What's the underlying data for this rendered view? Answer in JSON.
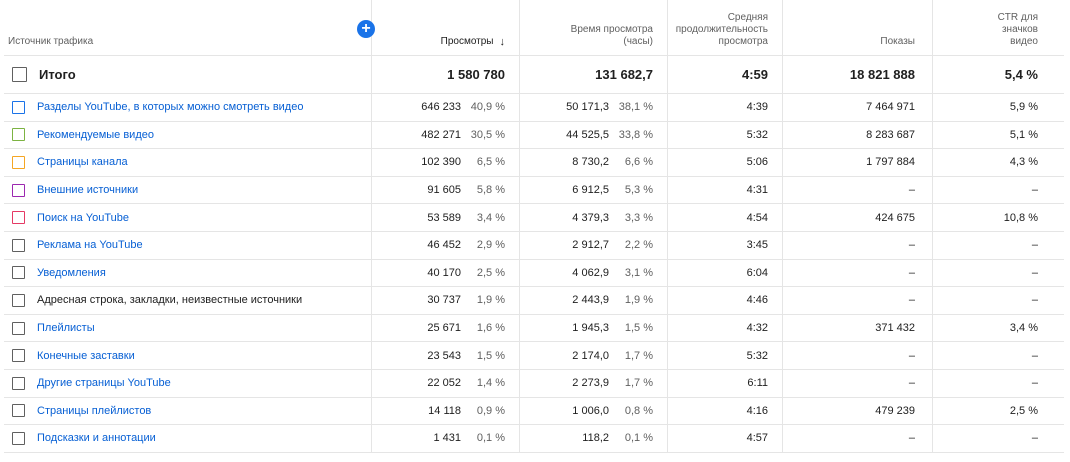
{
  "header": {
    "source": "Источник трафика",
    "views": "Просмотры",
    "sort_icon": "↓",
    "watch_time": "Время просмотра (часы)",
    "avg_duration": "Средняя продолжительность просмотра",
    "impressions": "Показы",
    "ctr": "CTR для значков видео",
    "add_icon": "+"
  },
  "total": {
    "label": "Итого",
    "views": "1 580 780",
    "watch_time": "131 682,7",
    "avg_duration": "4:59",
    "impressions": "18 821 888",
    "ctr": "5,4 %"
  },
  "rows": [
    {
      "label": "Разделы YouTube, в которых можно смотреть видео",
      "link": true,
      "color": "#1a73e8",
      "views": "646 233",
      "views_pct": "40,9 %",
      "watch": "50 171,3",
      "watch_pct": "38,1 %",
      "avg": "4:39",
      "impr": "7 464 971",
      "ctr": "5,9 %"
    },
    {
      "label": "Рекомендуемые видео",
      "link": true,
      "color": "#7cb342",
      "views": "482 271",
      "views_pct": "30,5 %",
      "watch": "44 525,5",
      "watch_pct": "33,8 %",
      "avg": "5:32",
      "impr": "8 283 687",
      "ctr": "5,1 %"
    },
    {
      "label": "Страницы канала",
      "link": true,
      "color": "#f5a623",
      "views": "102 390",
      "views_pct": "6,5 %",
      "watch": "8 730,2",
      "watch_pct": "6,6 %",
      "avg": "5:06",
      "impr": "1 797 884",
      "ctr": "4,3 %"
    },
    {
      "label": "Внешние источники",
      "link": true,
      "color": "#9c27b0",
      "views": "91 605",
      "views_pct": "5,8 %",
      "watch": "6 912,5",
      "watch_pct": "5,3 %",
      "avg": "4:31",
      "impr": "–",
      "ctr": "–"
    },
    {
      "label": "Поиск на YouTube",
      "link": true,
      "color": "#e53964",
      "views": "53 589",
      "views_pct": "3,4 %",
      "watch": "4 379,3",
      "watch_pct": "3,3 %",
      "avg": "4:54",
      "impr": "424 675",
      "ctr": "10,8 %"
    },
    {
      "label": "Реклама на YouTube",
      "link": true,
      "color": "#606060",
      "views": "46 452",
      "views_pct": "2,9 %",
      "watch": "2 912,7",
      "watch_pct": "2,2 %",
      "avg": "3:45",
      "impr": "–",
      "ctr": "–"
    },
    {
      "label": "Уведомления",
      "link": true,
      "color": "#606060",
      "views": "40 170",
      "views_pct": "2,5 %",
      "watch": "4 062,9",
      "watch_pct": "3,1 %",
      "avg": "6:04",
      "impr": "–",
      "ctr": "–"
    },
    {
      "label": "Адресная строка, закладки, неизвестные источники",
      "link": false,
      "color": "#606060",
      "views": "30 737",
      "views_pct": "1,9 %",
      "watch": "2 443,9",
      "watch_pct": "1,9 %",
      "avg": "4:46",
      "impr": "–",
      "ctr": "–"
    },
    {
      "label": "Плейлисты",
      "link": true,
      "color": "#606060",
      "views": "25 671",
      "views_pct": "1,6 %",
      "watch": "1 945,3",
      "watch_pct": "1,5 %",
      "avg": "4:32",
      "impr": "371 432",
      "ctr": "3,4 %"
    },
    {
      "label": "Конечные заставки",
      "link": true,
      "color": "#606060",
      "views": "23 543",
      "views_pct": "1,5 %",
      "watch": "2 174,0",
      "watch_pct": "1,7 %",
      "avg": "5:32",
      "impr": "–",
      "ctr": "–"
    },
    {
      "label": "Другие страницы YouTube",
      "link": true,
      "color": "#606060",
      "views": "22 052",
      "views_pct": "1,4 %",
      "watch": "2 273,9",
      "watch_pct": "1,7 %",
      "avg": "6:11",
      "impr": "–",
      "ctr": "–"
    },
    {
      "label": "Страницы плейлистов",
      "link": true,
      "color": "#606060",
      "views": "14 118",
      "views_pct": "0,9 %",
      "watch": "1 006,0",
      "watch_pct": "0,8 %",
      "avg": "4:16",
      "impr": "479 239",
      "ctr": "2,5 %"
    },
    {
      "label": "Подсказки и аннотации",
      "link": true,
      "color": "#606060",
      "views": "1 431",
      "views_pct": "0,1 %",
      "watch": "118,2",
      "watch_pct": "0,1 %",
      "avg": "4:57",
      "impr": "–",
      "ctr": "–"
    }
  ]
}
